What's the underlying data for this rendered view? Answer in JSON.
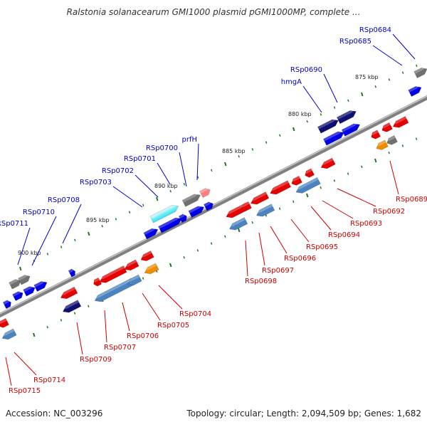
{
  "title": "Ralstonia solanacearum GMI1000 plasmid pGMI1000MP, complete ...",
  "footer": {
    "accession": "Accession: NC_003296",
    "summary": "Topology: circular; Length: 2,094,509 bp; Genes: 1,682"
  },
  "colors": {
    "forward": "#0000e6",
    "reverse": "#e60000",
    "navy": "#101070",
    "steel": "#4a84c0",
    "gray": "#707070",
    "orange": "#f08c00",
    "cyan": "#30e0f0",
    "pink": "#ff8080",
    "tick": "#1a7a1a",
    "backbone": "#808080",
    "label_forward": "#0000cc",
    "label_reverse": "#cc0000"
  },
  "kbp_labels": [
    "900 kbp",
    "895 kbp",
    "890 kbp",
    "885 kbp",
    "880 kbp",
    "875 kbp"
  ],
  "genes": [
    {
      "name": "RSp0684",
      "strand": "forward"
    },
    {
      "name": "RSp0685",
      "strand": "forward"
    },
    {
      "name": "RSp0690",
      "strand": "forward"
    },
    {
      "name": "hmgA",
      "strand": "forward"
    },
    {
      "name": "prfH",
      "strand": "forward"
    },
    {
      "name": "RSp0700",
      "strand": "forward"
    },
    {
      "name": "RSp0701",
      "strand": "forward"
    },
    {
      "name": "RSp0702",
      "strand": "forward"
    },
    {
      "name": "RSp0703",
      "strand": "forward"
    },
    {
      "name": "RSp0708",
      "strand": "forward"
    },
    {
      "name": "RSp0710",
      "strand": "forward"
    },
    {
      "name": "RSp0711",
      "strand": "forward"
    },
    {
      "name": "RSp0689",
      "strand": "reverse"
    },
    {
      "name": "RSp0692",
      "strand": "reverse"
    },
    {
      "name": "RSp0693",
      "strand": "reverse"
    },
    {
      "name": "RSp0694",
      "strand": "reverse"
    },
    {
      "name": "RSp0695",
      "strand": "reverse"
    },
    {
      "name": "RSp0696",
      "strand": "reverse"
    },
    {
      "name": "RSp0697",
      "strand": "reverse"
    },
    {
      "name": "RSp0698",
      "strand": "reverse"
    },
    {
      "name": "RSp0704",
      "strand": "reverse"
    },
    {
      "name": "RSp0705",
      "strand": "reverse"
    },
    {
      "name": "RSp0706",
      "strand": "reverse"
    },
    {
      "name": "RSp0707",
      "strand": "reverse"
    },
    {
      "name": "RSp0709",
      "strand": "reverse"
    },
    {
      "name": "RSp0714",
      "strand": "reverse"
    },
    {
      "name": "RSp0715",
      "strand": "reverse"
    }
  ]
}
